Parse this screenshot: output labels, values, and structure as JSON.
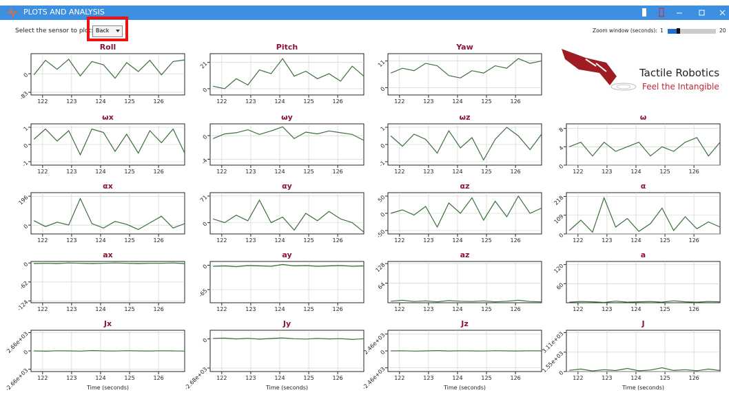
{
  "window": {
    "title": "PLOTS AND ANALYSIS"
  },
  "controls": {
    "sensor_label": "Select the sensor to plot:",
    "sensor_value": "Back",
    "zoom_label": "Zoom window (seconds):",
    "zoom_min": "1",
    "zoom_max": "20"
  },
  "logo": {
    "name": "Tactile Robotics",
    "tagline": "Feel the Intangible"
  },
  "plots": {
    "x": [
      121.7,
      122.1,
      122.5,
      122.9,
      123.3,
      123.7,
      124.1,
      124.5,
      124.9,
      125.3,
      125.7,
      126.1,
      126.5,
      126.9
    ],
    "xlim": [
      121.6,
      126.9
    ],
    "xticks": [
      122,
      123,
      124,
      125,
      126
    ],
    "line_color": "#3c6e3c",
    "charts": [
      {
        "title": "Roll",
        "ylim": [
          -95,
          90
        ],
        "yticks": [
          -83,
          0
        ],
        "values": [
          -5,
          60,
          20,
          65,
          -10,
          55,
          40,
          -20,
          50,
          10,
          60,
          -5,
          55,
          62
        ]
      },
      {
        "title": "Pitch",
        "ylim": [
          -5,
          28
        ],
        "yticks": [
          0,
          21
        ],
        "values": [
          2,
          0,
          8,
          3,
          15,
          12,
          24,
          10,
          14,
          8,
          12,
          6,
          18,
          10
        ]
      },
      {
        "title": "Yaw",
        "ylim": [
          -3,
          14
        ],
        "yticks": [
          0,
          11
        ],
        "values": [
          6,
          8,
          7,
          10,
          9,
          5,
          4,
          7,
          6,
          9,
          8,
          12,
          10,
          11
        ]
      },
      {
        "title": "ωx",
        "ylim": [
          -1.2,
          1.2
        ],
        "yticks": [
          -1,
          0,
          1
        ],
        "values": [
          0.3,
          0.9,
          0.2,
          0.8,
          -0.6,
          0.9,
          0.7,
          -0.4,
          0.6,
          -0.5,
          0.8,
          0.1,
          0.9,
          -0.5
        ]
      },
      {
        "title": "ωy",
        "ylim": [
          -5,
          2
        ],
        "yticks": [
          -4,
          0
        ],
        "values": [
          -0.5,
          0.3,
          0.5,
          1.0,
          0.2,
          0.8,
          1.5,
          -0.5,
          0.6,
          0.3,
          0.8,
          0.5,
          0.2,
          -0.8
        ]
      },
      {
        "title": "ωz",
        "ylim": [
          -1.2,
          1.2
        ],
        "yticks": [
          -1,
          0,
          1
        ],
        "values": [
          0.5,
          -0.1,
          0.6,
          0.3,
          -0.5,
          0.8,
          -0.2,
          0.4,
          -0.9,
          0.3,
          1.0,
          0.5,
          -0.3,
          0.6
        ]
      },
      {
        "title": "ω",
        "ylim": [
          0,
          9
        ],
        "yticks": [
          0,
          4,
          8
        ],
        "values": [
          4,
          5,
          2,
          5,
          3,
          4,
          5,
          2,
          4,
          3,
          5,
          6,
          2,
          5
        ]
      },
      {
        "title": "αx",
        "ylim": [
          -60,
          220
        ],
        "yticks": [
          0,
          196
        ],
        "values": [
          30,
          -10,
          20,
          0,
          180,
          10,
          -20,
          25,
          5,
          -30,
          15,
          60,
          -20,
          10
        ]
      },
      {
        "title": "αy",
        "ylim": [
          -30,
          80
        ],
        "yticks": [
          0,
          71
        ],
        "values": [
          10,
          0,
          20,
          5,
          60,
          0,
          15,
          -20,
          25,
          5,
          30,
          10,
          0,
          -25
        ]
      },
      {
        "title": "αz",
        "ylim": [
          -60,
          60
        ],
        "yticks": [
          -50,
          0,
          50
        ],
        "values": [
          0,
          10,
          -5,
          20,
          -40,
          30,
          0,
          45,
          -20,
          35,
          -10,
          50,
          0,
          15
        ]
      },
      {
        "title": "α",
        "ylim": [
          0,
          240
        ],
        "yticks": [
          0,
          109,
          218
        ],
        "values": [
          20,
          80,
          10,
          210,
          40,
          90,
          15,
          60,
          150,
          20,
          100,
          30,
          70,
          40
        ]
      },
      {
        "title": "ax",
        "ylim": [
          -130,
          5
        ],
        "yticks": [
          -124,
          -62,
          0
        ],
        "values": [
          -2,
          -1,
          -2,
          0,
          -1,
          -2,
          -1,
          0,
          -1,
          -2,
          -1,
          -1,
          0,
          -2
        ]
      },
      {
        "title": "ay",
        "ylim": [
          -100,
          10
        ],
        "yticks": [
          -65,
          0
        ],
        "values": [
          -3,
          -2,
          -4,
          -1,
          -2,
          -3,
          2,
          -2,
          -1,
          -3,
          -2,
          -1,
          -3,
          -2
        ]
      },
      {
        "title": "az",
        "ylim": [
          0,
          135
        ],
        "yticks": [
          64,
          128
        ],
        "values": [
          5,
          8,
          4,
          6,
          3,
          7,
          5,
          4,
          6,
          3,
          5,
          8,
          4,
          3
        ]
      },
      {
        "title": "a",
        "ylim": [
          0,
          130
        ],
        "yticks": [
          60,
          120
        ],
        "values": [
          2,
          4,
          3,
          1,
          5,
          2,
          3,
          4,
          2,
          6,
          3,
          2,
          4,
          3
        ]
      },
      {
        "title": "Jx",
        "ylim": [
          -3000,
          3000
        ],
        "yticks": [
          {
            "value": -2660,
            "label": "-2.66e+03"
          },
          0,
          {
            "value": 2660,
            "label": "2.66e+03"
          }
        ],
        "values": [
          0,
          -40,
          20,
          0,
          -30,
          50,
          0,
          -20,
          30,
          0,
          -10,
          20,
          0,
          -30
        ],
        "xlabel": "Time (seconds)"
      },
      {
        "title": "Jy",
        "ylim": [
          -3000,
          800
        ],
        "yticks": [
          {
            "value": -2680,
            "label": "-2.68e+03"
          },
          0
        ],
        "values": [
          50,
          80,
          0,
          60,
          -20,
          40,
          100,
          20,
          -10,
          50,
          0,
          30,
          -40,
          20
        ],
        "xlabel": "Time (seconds)"
      },
      {
        "title": "Jz",
        "ylim": [
          -3000,
          3000
        ],
        "yticks": [
          {
            "value": -2460,
            "label": "-2.46e+03"
          },
          0,
          {
            "value": 2460,
            "label": "2.46e+03"
          }
        ],
        "values": [
          0,
          20,
          -30,
          0,
          40,
          -10,
          20,
          0,
          -20,
          30,
          0,
          -10,
          20,
          0
        ],
        "xlabel": "Time (seconds)"
      },
      {
        "title": "J",
        "ylim": [
          0,
          3300
        ],
        "yticks": [
          0,
          {
            "value": 1550,
            "label": "1.55e+03"
          },
          {
            "value": 3110,
            "label": "3.11e+03"
          }
        ],
        "values": [
          100,
          200,
          50,
          150,
          80,
          250,
          60,
          120,
          300,
          90,
          150,
          60,
          200,
          80
        ],
        "xlabel": "Time (seconds)"
      }
    ]
  }
}
